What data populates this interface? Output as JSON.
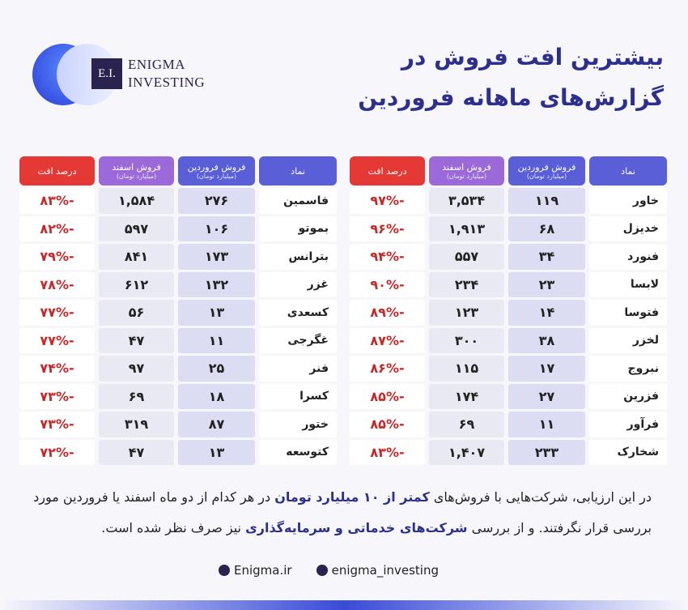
{
  "logo": {
    "mark": "E.I.",
    "line1": "ENIGMA",
    "line2": "INVESTING"
  },
  "header": {
    "title_line1": "بیشترین افت فروش در",
    "title_line2": "گزارش‌های ماهانه فروردین"
  },
  "tables": [
    {
      "headers": [
        {
          "title": "نماد"
        },
        {
          "title": "فروش فروردین",
          "subtitle": "(میلیارد تومان)"
        },
        {
          "title": "فروش اسفند",
          "subtitle": "(میلیارد تومان)"
        },
        {
          "title": "درصد افت"
        }
      ],
      "rows": [
        [
          "خاور",
          "۱۱۹",
          "۳,۵۳۴",
          "-۹۷%"
        ],
        [
          "خدیزل",
          "۶۸",
          "۱,۹۱۳",
          "-۹۶%"
        ],
        [
          "فنورد",
          "۳۴",
          "۵۵۷",
          "-۹۴%"
        ],
        [
          "لابسا",
          "۲۳",
          "۲۳۴",
          "-۹۰%"
        ],
        [
          "فتوسا",
          "۱۴",
          "۱۲۳",
          "-۸۹%"
        ],
        [
          "لخزر",
          "۳۸",
          "۳۰۰",
          "-۸۷%"
        ],
        [
          "نبروج",
          "۱۷",
          "۱۱۵",
          "-۸۶%"
        ],
        [
          "فزرین",
          "۲۷",
          "۱۷۴",
          "-۸۵%"
        ],
        [
          "فرآور",
          "۱۱",
          "۶۹",
          "-۸۵%"
        ],
        [
          "شخارک",
          "۲۳۳",
          "۱,۴۰۷",
          "-۸۳%"
        ]
      ]
    },
    {
      "headers": [
        {
          "title": "نماد"
        },
        {
          "title": "فروش فروردین",
          "subtitle": "(میلیارد تومان)"
        },
        {
          "title": "فروش اسفند",
          "subtitle": "(میلیارد تومان)"
        },
        {
          "title": "درصد افت"
        }
      ],
      "rows": [
        [
          "فاسمین",
          "۲۷۶",
          "۱,۵۸۴",
          "-۸۳%"
        ],
        [
          "بموتو",
          "۱۰۶",
          "۵۹۷",
          "-۸۲%"
        ],
        [
          "بترانس",
          "۱۷۳",
          "۸۴۱",
          "-۷۹%"
        ],
        [
          "غزر",
          "۱۳۲",
          "۶۱۲",
          "-۷۸%"
        ],
        [
          "کسعدی",
          "۱۳",
          "۵۶",
          "-۷۷%"
        ],
        [
          "غگرجی",
          "۱۱",
          "۴۷",
          "-۷۷%"
        ],
        [
          "فنر",
          "۲۵",
          "۹۷",
          "-۷۴%"
        ],
        [
          "کسرا",
          "۱۸",
          "۶۹",
          "-۷۳%"
        ],
        [
          "ختور",
          "۸۷",
          "۳۱۹",
          "-۷۳%"
        ],
        [
          "کتوسعه",
          "۱۳",
          "۴۷",
          "-۷۲%"
        ]
      ]
    }
  ],
  "footer": {
    "paragraph": [
      {
        "text": "در این ارزیابی، شرکت‌هایی با فروش‌های "
      },
      {
        "text": "کمتر از ۱۰ میلیارد تومان",
        "bold": true
      },
      {
        "text": " در هر کدام از دو ماه اسفند یا فروردین مورد بررسی قرار نگرفتند. و از بررسی "
      },
      {
        "text": "شرکت‌های خدماتی و سرمایه‌گذاری",
        "bold": true
      },
      {
        "text": " نیز صرف نظر شده است."
      }
    ],
    "links": [
      "Enigma.ir",
      "enigma_investing"
    ]
  }
}
